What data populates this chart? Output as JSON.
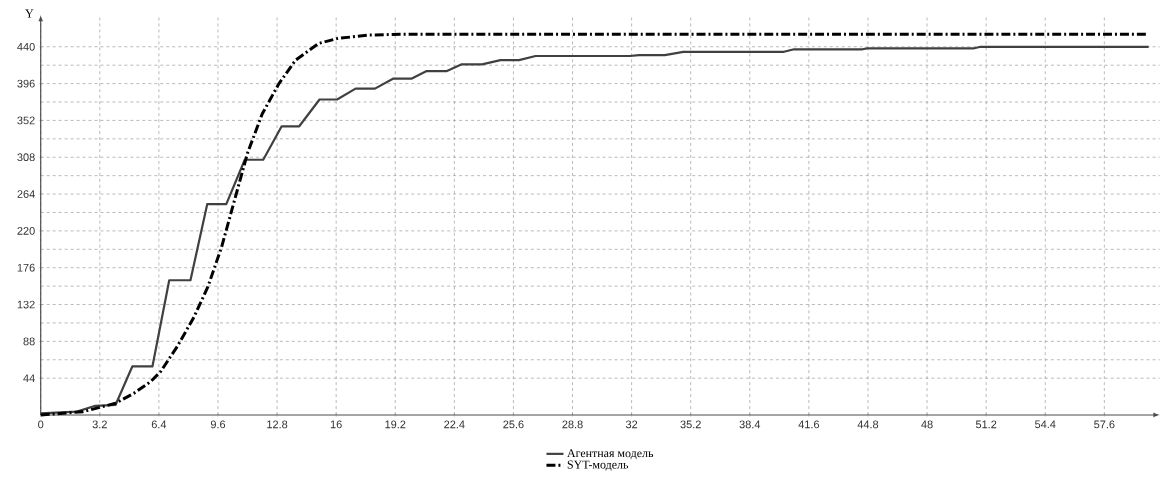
{
  "chart_data": {
    "type": "line",
    "ylabel": "Y",
    "xlim": [
      0,
      60.6
    ],
    "ylim": [
      0,
      478
    ],
    "xticks": [
      0,
      3.2,
      6.4,
      9.6,
      12.8,
      16,
      19.2,
      22.4,
      25.6,
      28.8,
      32,
      35.2,
      38.4,
      41.6,
      44.8,
      48,
      51.2,
      54.4,
      57.6
    ],
    "yticks": [
      44,
      88,
      132,
      176,
      220,
      264,
      308,
      352,
      396,
      440
    ],
    "grid": true,
    "legend": "bottom",
    "series": [
      {
        "name": "Агентная модель",
        "color": "#404040",
        "line_style": "solid",
        "x": [
          0,
          1.96,
          2.96,
          4.05,
          4.96,
          6.05,
          6.96,
          8.11,
          9.02,
          10.05,
          11.05,
          12.05,
          13.05,
          14.0,
          15.1,
          16.05,
          17.05,
          18.1,
          19.1,
          20.1,
          20.9,
          22.0,
          22.8,
          23.9,
          24.9,
          25.9,
          26.8,
          31.9,
          32.4,
          33.8,
          34.8,
          40.25,
          40.8,
          44.5,
          44.75,
          50.5,
          50.9,
          60.0
        ],
        "values": [
          2,
          4,
          11,
          12,
          58,
          58,
          161,
          161,
          252,
          252,
          305,
          305,
          345,
          345,
          377,
          377,
          390,
          390,
          402,
          402,
          411,
          411,
          419,
          419,
          424,
          424,
          429,
          429,
          430,
          430,
          434,
          434,
          437,
          437,
          438,
          438,
          440,
          440
        ]
      },
      {
        "name": "SYT-модель",
        "color": "#000000",
        "line_style": "dashdot",
        "x": [
          0,
          2.3,
          4.05,
          5.05,
          5.96,
          6.5,
          7.4,
          8.3,
          9.05,
          9.8,
          10.5,
          11.2,
          12.0,
          12.9,
          13.8,
          15.05,
          16.1,
          17.8,
          19.6,
          60.0
        ],
        "values": [
          0,
          4,
          14,
          26,
          40,
          52,
          82,
          117,
          153,
          201,
          257,
          313,
          360,
          396,
          424,
          444,
          450,
          454,
          455,
          455
        ]
      }
    ]
  }
}
